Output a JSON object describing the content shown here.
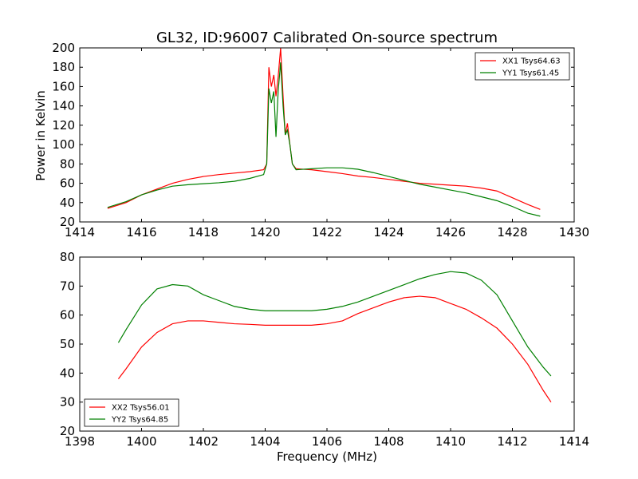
{
  "chart_data": [
    {
      "type": "line",
      "title": "GL32, ID:96007 Calibrated On-source spectrum",
      "xlabel": "",
      "ylabel": "Power in Kelvin",
      "xlim": [
        1414,
        1430
      ],
      "ylim": [
        20,
        200
      ],
      "xticks": [
        1414,
        1416,
        1418,
        1420,
        1422,
        1424,
        1426,
        1428,
        1430
      ],
      "yticks": [
        20,
        40,
        60,
        80,
        100,
        120,
        140,
        160,
        180,
        200
      ],
      "legend_position": "top-right",
      "series": [
        {
          "name": "XX1 Tsys64.63",
          "color": "#ff0000",
          "points": [
            [
              1414.9,
              34
            ],
            [
              1415.5,
              40
            ],
            [
              1416,
              48
            ],
            [
              1416.5,
              54
            ],
            [
              1417,
              60
            ],
            [
              1417.5,
              64
            ],
            [
              1418,
              67
            ],
            [
              1418.5,
              69
            ],
            [
              1419,
              70.5
            ],
            [
              1419.5,
              72
            ],
            [
              1419.95,
              74
            ],
            [
              1420.05,
              80
            ],
            [
              1420.12,
              180
            ],
            [
              1420.2,
              160
            ],
            [
              1420.28,
              172
            ],
            [
              1420.35,
              150
            ],
            [
              1420.42,
              170
            ],
            [
              1420.5,
              200
            ],
            [
              1420.58,
              150
            ],
            [
              1420.65,
              110
            ],
            [
              1420.72,
              122
            ],
            [
              1420.8,
              100
            ],
            [
              1420.88,
              80
            ],
            [
              1421,
              75
            ],
            [
              1421.5,
              74
            ],
            [
              1422,
              72
            ],
            [
              1422.5,
              70
            ],
            [
              1423,
              67.5
            ],
            [
              1423.5,
              66
            ],
            [
              1424,
              64
            ],
            [
              1424.5,
              62
            ],
            [
              1425,
              60
            ],
            [
              1425.5,
              59
            ],
            [
              1426,
              58
            ],
            [
              1426.5,
              57
            ],
            [
              1427,
              55
            ],
            [
              1427.5,
              52
            ],
            [
              1428,
              45
            ],
            [
              1428.5,
              38
            ],
            [
              1428.9,
              33
            ]
          ]
        },
        {
          "name": "YY1 Tsys61.45",
          "color": "#008000",
          "points": [
            [
              1414.9,
              35
            ],
            [
              1415.5,
              41
            ],
            [
              1416,
              48
            ],
            [
              1416.5,
              53
            ],
            [
              1417,
              57
            ],
            [
              1417.5,
              58.5
            ],
            [
              1418,
              59.5
            ],
            [
              1418.5,
              60.5
            ],
            [
              1419,
              62
            ],
            [
              1419.5,
              65
            ],
            [
              1419.95,
              69
            ],
            [
              1420.05,
              80
            ],
            [
              1420.12,
              158
            ],
            [
              1420.2,
              143
            ],
            [
              1420.28,
              155
            ],
            [
              1420.35,
              108
            ],
            [
              1420.42,
              155
            ],
            [
              1420.5,
              185
            ],
            [
              1420.58,
              140
            ],
            [
              1420.65,
              110
            ],
            [
              1420.72,
              115
            ],
            [
              1420.8,
              100
            ],
            [
              1420.88,
              80
            ],
            [
              1421,
              74
            ],
            [
              1421.5,
              75
            ],
            [
              1422,
              76
            ],
            [
              1422.5,
              76
            ],
            [
              1423,
              74.5
            ],
            [
              1423.5,
              71
            ],
            [
              1424,
              67
            ],
            [
              1424.5,
              63
            ],
            [
              1425,
              59
            ],
            [
              1425.5,
              56
            ],
            [
              1426,
              53
            ],
            [
              1426.5,
              50
            ],
            [
              1427,
              46
            ],
            [
              1427.5,
              42
            ],
            [
              1428,
              36
            ],
            [
              1428.5,
              29
            ],
            [
              1428.9,
              26
            ]
          ]
        }
      ]
    },
    {
      "type": "line",
      "title": "",
      "xlabel": "Frequency (MHz)",
      "ylabel": "",
      "xlim": [
        1398,
        1414
      ],
      "ylim": [
        20,
        80
      ],
      "xticks": [
        1398,
        1400,
        1402,
        1404,
        1406,
        1408,
        1410,
        1412,
        1414
      ],
      "yticks": [
        20,
        30,
        40,
        50,
        60,
        70,
        80
      ],
      "legend_position": "bottom-left",
      "series": [
        {
          "name": "XX2 Tsys56.01",
          "color": "#ff0000",
          "points": [
            [
              1399.25,
              38
            ],
            [
              1399.5,
              41.5
            ],
            [
              1400,
              49
            ],
            [
              1400.5,
              54
            ],
            [
              1401,
              57
            ],
            [
              1401.5,
              58
            ],
            [
              1402,
              58
            ],
            [
              1402.5,
              57.5
            ],
            [
              1403,
              57
            ],
            [
              1403.5,
              56.8
            ],
            [
              1404,
              56.5
            ],
            [
              1404.5,
              56.5
            ],
            [
              1405,
              56.5
            ],
            [
              1405.5,
              56.5
            ],
            [
              1406,
              57
            ],
            [
              1406.5,
              58
            ],
            [
              1407,
              60.5
            ],
            [
              1407.5,
              62.5
            ],
            [
              1408,
              64.5
            ],
            [
              1408.5,
              66
            ],
            [
              1409,
              66.5
            ],
            [
              1409.5,
              66
            ],
            [
              1410,
              64
            ],
            [
              1410.5,
              62
            ],
            [
              1411,
              59
            ],
            [
              1411.5,
              55.5
            ],
            [
              1412,
              50
            ],
            [
              1412.5,
              43
            ],
            [
              1413,
              34
            ],
            [
              1413.25,
              30
            ]
          ]
        },
        {
          "name": "YY2 Tsys64.85",
          "color": "#008000",
          "points": [
            [
              1399.25,
              50.5
            ],
            [
              1399.5,
              55
            ],
            [
              1400,
              63.5
            ],
            [
              1400.5,
              69
            ],
            [
              1401,
              70.5
            ],
            [
              1401.5,
              70
            ],
            [
              1402,
              67
            ],
            [
              1402.5,
              65
            ],
            [
              1403,
              63
            ],
            [
              1403.5,
              62
            ],
            [
              1404,
              61.5
            ],
            [
              1404.5,
              61.5
            ],
            [
              1405,
              61.5
            ],
            [
              1405.5,
              61.5
            ],
            [
              1406,
              62
            ],
            [
              1406.5,
              63
            ],
            [
              1407,
              64.5
            ],
            [
              1407.5,
              66.5
            ],
            [
              1408,
              68.5
            ],
            [
              1408.5,
              70.5
            ],
            [
              1409,
              72.5
            ],
            [
              1409.5,
              74
            ],
            [
              1410,
              75
            ],
            [
              1410.5,
              74.5
            ],
            [
              1411,
              72
            ],
            [
              1411.5,
              67
            ],
            [
              1412,
              58
            ],
            [
              1412.5,
              49
            ],
            [
              1413,
              42
            ],
            [
              1413.25,
              39
            ]
          ]
        }
      ]
    }
  ]
}
